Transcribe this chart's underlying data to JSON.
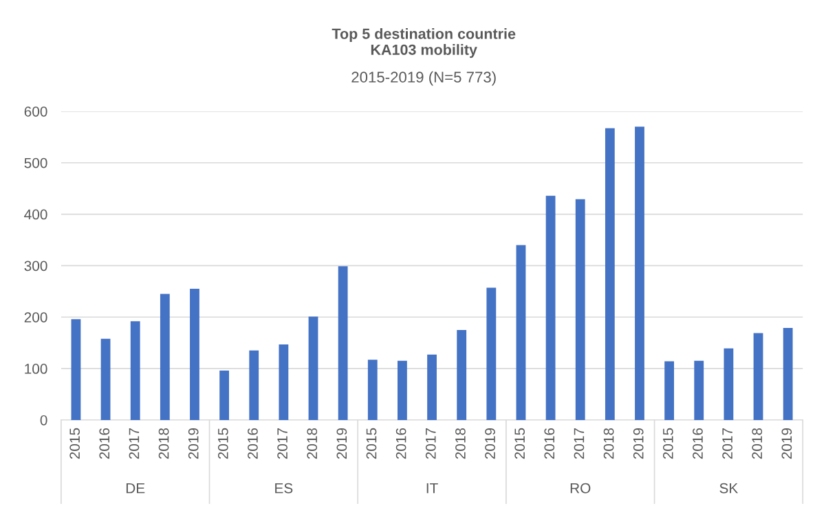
{
  "chart_data": {
    "type": "bar",
    "title": "Top 5 destination countrie\nKA103 mobility",
    "subtitle": "2015-2019 (N=5 773)",
    "categories": [
      "2015",
      "2016",
      "2017",
      "2018",
      "2019",
      "2015",
      "2016",
      "2017",
      "2018",
      "2019",
      "2015",
      "2016",
      "2017",
      "2018",
      "2019",
      "2015",
      "2016",
      "2017",
      "2018",
      "2019",
      "2015",
      "2016",
      "2017",
      "2018",
      "2019"
    ],
    "values": [
      196,
      158,
      192,
      245,
      255,
      96,
      135,
      147,
      201,
      299,
      117,
      115,
      127,
      175,
      257,
      340,
      436,
      429,
      567,
      570,
      114,
      115,
      139,
      169,
      179
    ],
    "color": "#4472c4",
    "ylim": [
      0,
      600
    ],
    "yticks": [
      0,
      100,
      200,
      300,
      400,
      500,
      600
    ],
    "grid": "y",
    "annotations": [
      "DE",
      "ES",
      "IT",
      "RO",
      "SK"
    ]
  }
}
